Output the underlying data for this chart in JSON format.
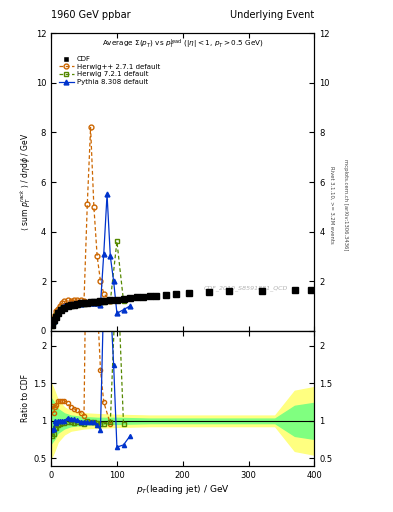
{
  "title_left": "1960 GeV ppbar",
  "title_right": "Underlying Event",
  "xlabel": "p_{T}(leading jet) / GeV",
  "ylabel_main": "<sum p_T^rack> / d eta.dphi / GeV",
  "ylabel_ratio": "Ratio to CDF",
  "annotation_main": "Average Sigma(p_T) vs p_T^lead (|eta| < 1, p_T > 0.5 GeV)",
  "watermark": "CDF_2010_S8591881_QCD",
  "right_label": "mcplots.cern.ch [arXiv:1306.3436]",
  "rivet_label": "Rivet 3.1.10, >= 3.2M events",
  "xlim": [
    0,
    400
  ],
  "ylim_main": [
    0,
    12
  ],
  "ylim_ratio": [
    0.4,
    2.2
  ],
  "cdf_x": [
    2,
    5,
    7,
    10,
    15,
    20,
    25,
    30,
    35,
    40,
    45,
    50,
    55,
    60,
    65,
    70,
    75,
    80,
    90,
    100,
    110,
    120,
    130,
    140,
    150,
    160,
    175,
    190,
    210,
    240,
    270,
    320,
    370,
    395
  ],
  "cdf_y": [
    0.25,
    0.45,
    0.55,
    0.7,
    0.85,
    0.93,
    0.98,
    1.02,
    1.05,
    1.07,
    1.1,
    1.12,
    1.13,
    1.14,
    1.15,
    1.17,
    1.19,
    1.2,
    1.22,
    1.25,
    1.28,
    1.32,
    1.35,
    1.38,
    1.4,
    1.42,
    1.45,
    1.48,
    1.52,
    1.57,
    1.6,
    1.62,
    1.65,
    1.66
  ],
  "herwig_x": [
    2,
    4,
    6,
    8,
    10,
    13,
    16,
    20,
    25,
    30,
    35,
    40,
    45,
    50,
    55,
    60,
    65,
    70,
    75,
    80,
    90
  ],
  "herwig_y": [
    0.3,
    0.5,
    0.65,
    0.78,
    0.88,
    1.0,
    1.1,
    1.18,
    1.22,
    1.2,
    1.22,
    1.22,
    1.22,
    1.2,
    5.1,
    8.2,
    5.0,
    3.0,
    2.0,
    1.5,
    1.2
  ],
  "herwig7_x": [
    2,
    4,
    6,
    8,
    10,
    13,
    16,
    20,
    25,
    30,
    35,
    40,
    45,
    50,
    55,
    60,
    65,
    70,
    75,
    80,
    90,
    100,
    110
  ],
  "herwig7_y": [
    0.2,
    0.37,
    0.5,
    0.63,
    0.72,
    0.84,
    0.9,
    0.95,
    0.98,
    1.0,
    1.02,
    1.05,
    1.07,
    1.08,
    1.1,
    1.11,
    1.12,
    1.13,
    1.14,
    1.15,
    1.2,
    3.6,
    1.2
  ],
  "pythia_x": [
    2,
    4,
    6,
    8,
    10,
    13,
    16,
    20,
    25,
    30,
    35,
    40,
    45,
    50,
    55,
    60,
    65,
    70,
    75,
    80,
    85,
    90,
    95,
    100,
    110,
    120
  ],
  "pythia_y": [
    0.22,
    0.4,
    0.55,
    0.68,
    0.78,
    0.88,
    0.95,
    1.0,
    1.04,
    1.06,
    1.07,
    1.08,
    1.09,
    1.1,
    1.11,
    1.12,
    1.13,
    1.1,
    1.05,
    3.1,
    5.5,
    3.0,
    2.0,
    0.7,
    0.85,
    1.0
  ],
  "ratio_herwig_x": [
    2,
    4,
    6,
    8,
    10,
    13,
    16,
    20,
    25,
    30,
    35,
    40,
    45,
    50,
    55,
    60,
    65,
    70,
    75,
    80,
    90
  ],
  "ratio_herwig_y": [
    1.2,
    1.11,
    1.18,
    1.21,
    1.26,
    1.26,
    1.26,
    1.27,
    1.24,
    1.18,
    1.16,
    1.14,
    1.11,
    1.07,
    4.6,
    7.2,
    4.4,
    2.6,
    1.68,
    1.25,
    0.96
  ],
  "ratio_herwig7_x": [
    2,
    4,
    6,
    8,
    10,
    13,
    16,
    20,
    25,
    30,
    35,
    40,
    45,
    50,
    55,
    60,
    65,
    70,
    75,
    80,
    90,
    100,
    110
  ],
  "ratio_herwig7_y": [
    0.8,
    0.82,
    0.91,
    0.9,
    0.94,
    0.96,
    0.97,
    0.97,
    0.98,
    0.98,
    0.97,
    0.98,
    0.97,
    0.96,
    1.0,
    0.98,
    0.98,
    0.97,
    0.96,
    0.96,
    0.98,
    3.2,
    0.96
  ],
  "ratio_pythia_x": [
    2,
    4,
    6,
    8,
    10,
    13,
    16,
    20,
    25,
    30,
    35,
    40,
    45,
    50,
    55,
    60,
    65,
    70,
    75,
    80,
    85,
    90,
    95,
    100,
    110,
    120
  ],
  "ratio_pythia_y": [
    0.88,
    0.89,
    1.0,
    0.97,
    1.0,
    1.0,
    1.0,
    1.0,
    1.04,
    1.03,
    1.02,
    1.01,
    0.99,
    0.98,
    0.98,
    0.98,
    0.98,
    0.94,
    0.88,
    2.7,
    4.8,
    2.6,
    1.75,
    0.65,
    0.68,
    0.8
  ],
  "yellow_band_x": [
    0,
    5,
    10,
    20,
    30,
    50,
    70,
    100,
    150,
    200,
    250,
    300,
    340,
    370,
    400
  ],
  "yellow_band_lo": [
    0.5,
    0.6,
    0.72,
    0.82,
    0.87,
    0.9,
    0.91,
    0.92,
    0.93,
    0.93,
    0.93,
    0.93,
    0.93,
    0.6,
    0.55
  ],
  "yellow_band_hi": [
    1.5,
    1.4,
    1.28,
    1.18,
    1.13,
    1.1,
    1.09,
    1.08,
    1.07,
    1.07,
    1.07,
    1.07,
    1.07,
    1.4,
    1.45
  ],
  "green_band_x": [
    0,
    5,
    10,
    20,
    30,
    50,
    70,
    100,
    150,
    200,
    250,
    300,
    340,
    370,
    400
  ],
  "green_band_lo": [
    0.7,
    0.76,
    0.84,
    0.9,
    0.93,
    0.95,
    0.96,
    0.96,
    0.97,
    0.97,
    0.97,
    0.97,
    0.97,
    0.8,
    0.76
  ],
  "green_band_hi": [
    1.3,
    1.24,
    1.16,
    1.1,
    1.07,
    1.05,
    1.04,
    1.04,
    1.03,
    1.03,
    1.03,
    1.03,
    1.03,
    1.2,
    1.24
  ],
  "color_cdf": "#000000",
  "color_herwig": "#cc6600",
  "color_herwig7": "#558800",
  "color_pythia": "#0033cc",
  "color_yellow_band": "#ffff80",
  "color_green_band": "#80ff80",
  "bg_color": "#ffffff"
}
